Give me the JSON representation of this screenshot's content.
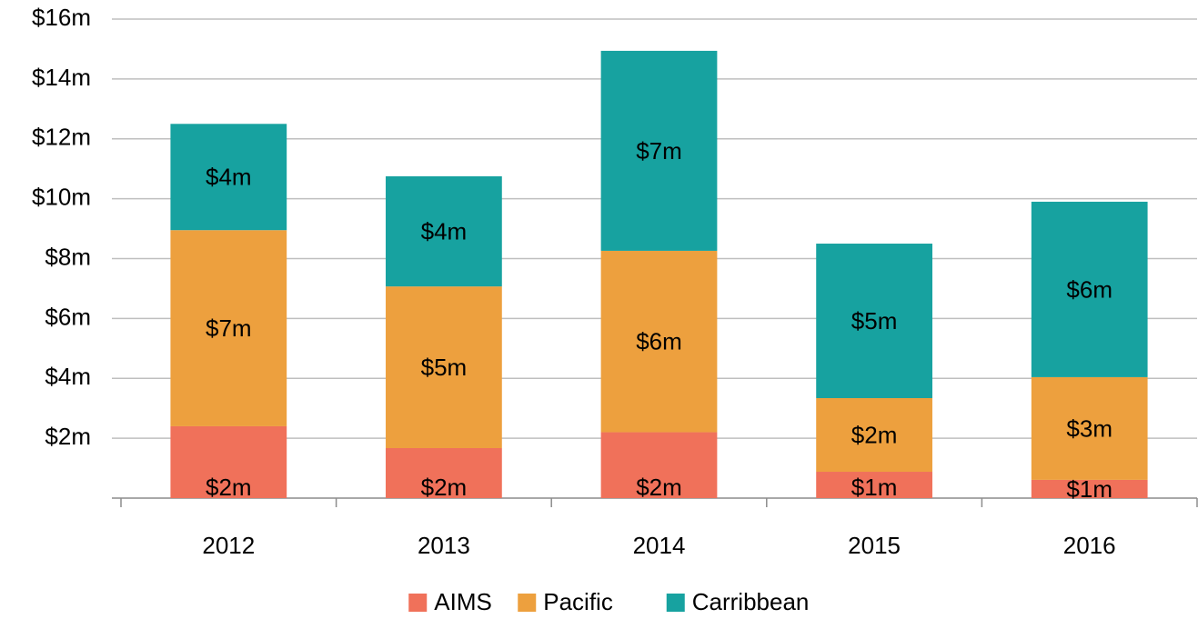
{
  "chart_data": {
    "type": "stacked_bar",
    "categories": [
      "2012",
      "2013",
      "2014",
      "2015",
      "2016"
    ],
    "series": [
      {
        "name": "AIMS",
        "color": "#f0715a",
        "values": [
          2.4,
          1.67,
          2.2,
          0.88,
          0.61
        ],
        "value_labels": [
          "$2m",
          "$2m",
          "$2m",
          "$1m",
          "$1m"
        ]
      },
      {
        "name": "Pacific",
        "color": "#eda03e",
        "values": [
          6.55,
          5.4,
          6.06,
          2.46,
          3.43
        ],
        "value_labels": [
          "$7m",
          "$5m",
          "$6m",
          "$2m",
          "$3m"
        ]
      },
      {
        "name": "Carribbean",
        "color": "#17a2a0",
        "values": [
          3.55,
          3.68,
          6.68,
          5.16,
          5.86
        ],
        "value_labels": [
          "$4m",
          "$4m",
          "$7m",
          "$5m",
          "$6m"
        ]
      }
    ],
    "ylim": [
      0,
      16
    ],
    "yticks": [
      {
        "value": 2,
        "label": "$2m"
      },
      {
        "value": 4,
        "label": "$4m"
      },
      {
        "value": 6,
        "label": "$6m"
      },
      {
        "value": 8,
        "label": "$8m"
      },
      {
        "value": 10,
        "label": "$10m"
      },
      {
        "value": 12,
        "label": "$12m"
      },
      {
        "value": 14,
        "label": "$14m"
      },
      {
        "value": 16,
        "label": "$16m"
      }
    ],
    "grid": true,
    "legend": "bottom"
  }
}
